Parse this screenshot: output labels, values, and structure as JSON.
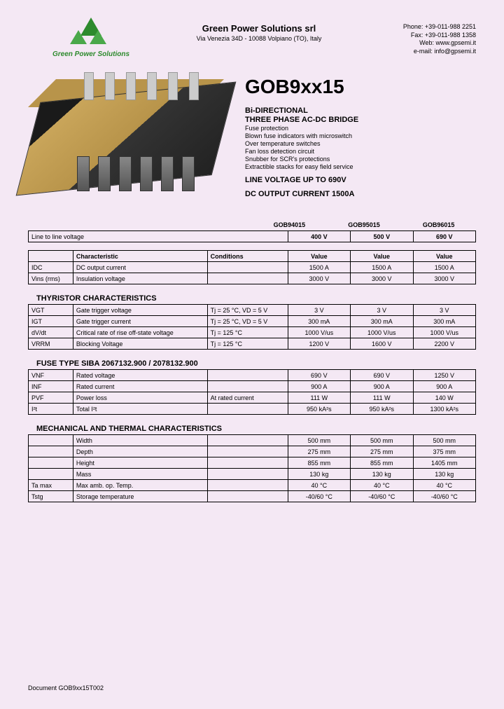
{
  "header": {
    "logo_text": "Green Power Solutions",
    "company": "Green Power Solutions srl",
    "address": "Via Venezia 34D - 10088 Volpiano (TO), Italy",
    "phone": "Phone: +39-011-988 2251",
    "fax": "Fax: +39-011-988 1358",
    "web": "Web: www.gpsemi.it",
    "email": "e-mail: info@gpsemi.it"
  },
  "product": {
    "code": "GOB9xx15",
    "sub1": "Bi-DIRECTIONAL",
    "sub2": "THREE PHASE AC-DC BRIDGE",
    "features": [
      "Fuse protection",
      "Blown fuse indicators with microswitch",
      "Over temperature switches",
      "Fan loss detection circuit",
      "Snubber for SCR's protections",
      "Extractible stacks for easy field service"
    ],
    "spec1": "LINE VOLTAGE UP TO 690V",
    "spec2": "DC OUTPUT CURRENT 1500A"
  },
  "models": [
    "GOB94015",
    "GOB95015",
    "GOB96015"
  ],
  "line_voltage": {
    "label": "Line to line voltage",
    "v": [
      "400 V",
      "500 V",
      "690 V"
    ]
  },
  "char_table": {
    "headers": [
      "Characteristic",
      "Conditions",
      "Value",
      "Value",
      "Value"
    ],
    "rows": [
      [
        "IDC",
        "DC output current",
        "",
        "1500 A",
        "1500 A",
        "1500 A"
      ],
      [
        "Vins (rms)",
        "Insulation voltage",
        "",
        "3000 V",
        "3000 V",
        "3000 V"
      ]
    ]
  },
  "thyristor": {
    "title": "THYRISTOR CHARACTERISTICS",
    "rows": [
      [
        "VGT",
        "Gate trigger voltage",
        "Tj = 25 °C, VD = 5 V",
        "3 V",
        "3 V",
        "3 V"
      ],
      [
        "IGT",
        "Gate trigger current",
        "Tj = 25 °C, VD = 5 V",
        "300 mA",
        "300 mA",
        "300 mA"
      ],
      [
        "dV/dt",
        "Critical rate of rise off-state voltage",
        "Tj = 125 °C",
        "1000 V/us",
        "1000 V/us",
        "1000 V/us"
      ],
      [
        "VRRM",
        "Blocking Voltage",
        "Tj = 125 °C",
        "1200 V",
        "1600 V",
        "2200 V"
      ]
    ]
  },
  "fuse": {
    "title": "FUSE TYPE SIBA 2067132.900 / 2078132.900",
    "rows": [
      [
        "VNF",
        "Rated voltage",
        "",
        "690 V",
        "690 V",
        "1250 V"
      ],
      [
        "INF",
        "Rated current",
        "",
        "900 A",
        "900 A",
        "900 A"
      ],
      [
        "PVF",
        "Power loss",
        "At rated current",
        "111 W",
        "111 W",
        "140 W"
      ],
      [
        "I²t",
        "Total I²t",
        "",
        "950 kA²s",
        "950 kA²s",
        "1300 kA²s"
      ]
    ]
  },
  "mech": {
    "title": "MECHANICAL AND THERMAL CHARACTERISTICS",
    "rows": [
      [
        "",
        "Width",
        "",
        "500 mm",
        "500 mm",
        "500 mm"
      ],
      [
        "",
        "Depth",
        "",
        "275 mm",
        "275 mm",
        "375 mm"
      ],
      [
        "",
        "Height",
        "",
        "855 mm",
        "855 mm",
        "1405 mm"
      ],
      [
        "",
        "Mass",
        "",
        "130 kg",
        "130 kg",
        "130 kg"
      ],
      [
        "Ta max",
        "Max amb. op. Temp.",
        "",
        "40 °C",
        "40 °C",
        "40 °C"
      ],
      [
        "Tstg",
        "Storage temperature",
        "",
        "-40/60 °C",
        "-40/60 °C",
        "-40/60 °C"
      ]
    ]
  },
  "footer": "Document GOB9xx15T002"
}
